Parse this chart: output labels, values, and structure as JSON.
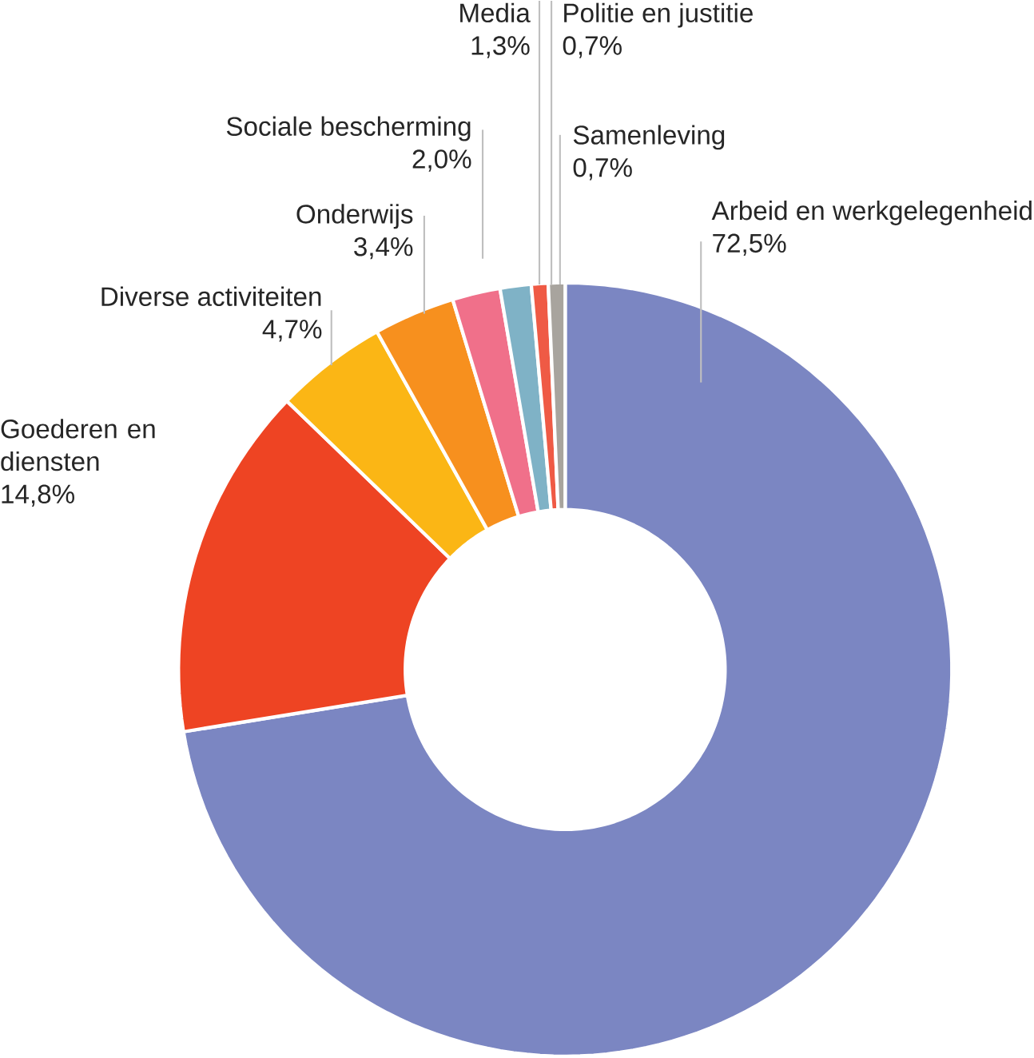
{
  "chart_data": {
    "type": "donut",
    "categories": [
      "Arbeid en werkgelegenheid",
      "Goederen en diensten",
      "Diverse activiteiten",
      "Onderwijs",
      "Sociale bescherming",
      "Media",
      "Politie en justitie",
      "Samenleving"
    ],
    "values": [
      72.5,
      14.8,
      4.7,
      3.4,
      2.0,
      1.3,
      0.7,
      0.7
    ],
    "value_labels": [
      "72,5%",
      "14,8%",
      "4,7%",
      "3,4%",
      "2,0%",
      "1,3%",
      "0,7%",
      "0,7%"
    ],
    "colors": [
      "#7b86c2",
      "#ee4423",
      "#fbb615",
      "#f7901e",
      "#f0708a",
      "#7fb2c6",
      "#ef5a45",
      "#a8a49e"
    ]
  }
}
